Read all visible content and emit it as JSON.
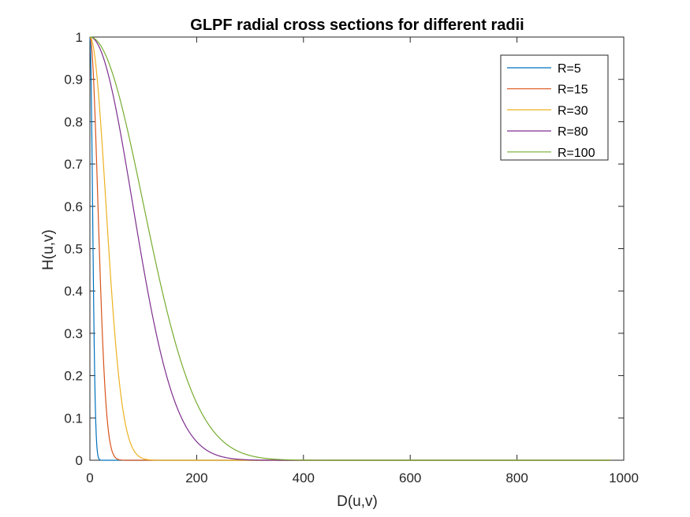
{
  "chart_data": {
    "type": "line",
    "title": "GLPF radial cross sections for different radii",
    "xlabel": "D(u,v)",
    "ylabel": "H(u,v)",
    "xlim": [
      0,
      1000
    ],
    "ylim": [
      0,
      1
    ],
    "xticks": [
      0,
      200,
      400,
      600,
      800,
      1000
    ],
    "yticks": [
      0,
      0.1,
      0.2,
      0.3,
      0.4,
      0.5,
      0.6,
      0.7,
      0.8,
      0.9,
      1
    ],
    "x_range": [
      0,
      975
    ],
    "formula": "H = exp(-D^2 / (2 R^2))",
    "grid": false,
    "legend_position": "top-right",
    "series": [
      {
        "name": "R=5",
        "radius": 5,
        "color": "#0072BD"
      },
      {
        "name": "R=15",
        "radius": 15,
        "color": "#D95319"
      },
      {
        "name": "R=30",
        "radius": 30,
        "color": "#EDB120"
      },
      {
        "name": "R=80",
        "radius": 80,
        "color": "#7E2F8E"
      },
      {
        "name": "R=100",
        "radius": 100,
        "color": "#77AC30"
      }
    ]
  }
}
